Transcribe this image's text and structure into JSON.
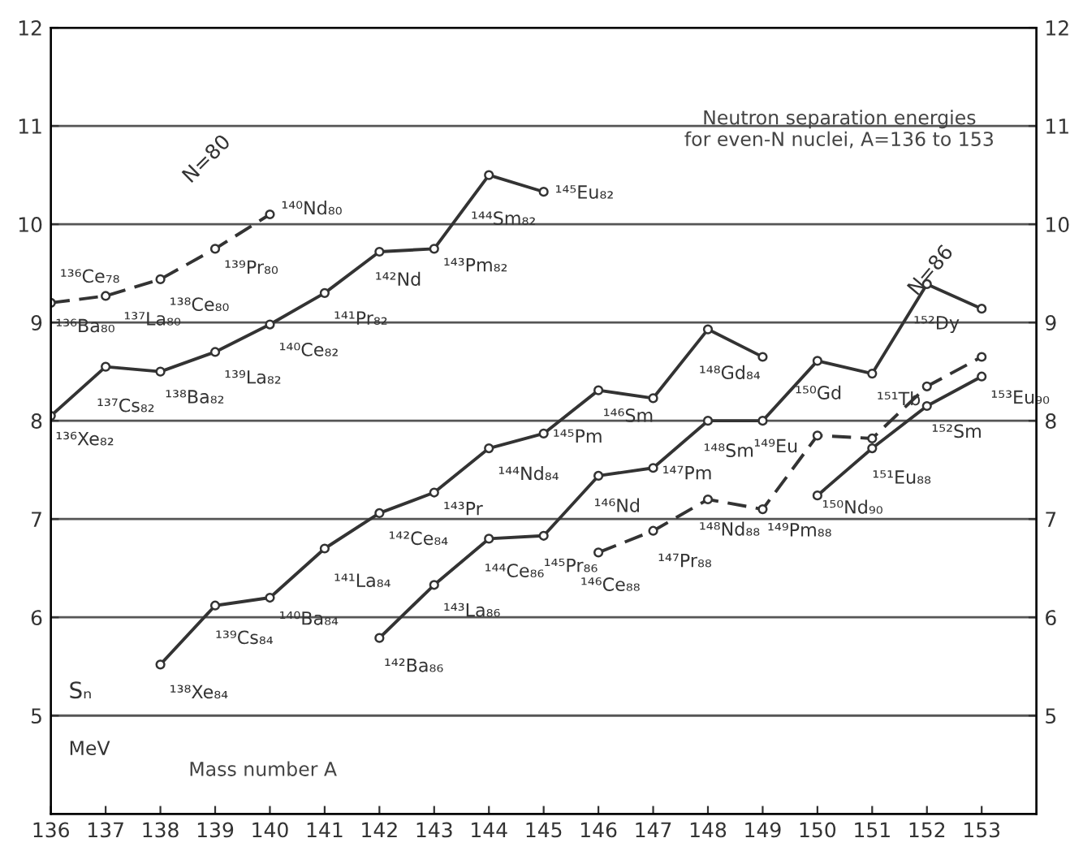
{
  "chart_data": {
    "type": "line",
    "title": "Neutron separation energies\nfor even-N nuclei, A=136 to 153",
    "xlabel": "Mass number A",
    "ylabel": "Sₙ",
    "xlim": [
      136,
      154
    ],
    "xticks": [
      136,
      137,
      138,
      139,
      140,
      141,
      142,
      143,
      144,
      145,
      146,
      147,
      148,
      149,
      150,
      151,
      152,
      153
    ],
    "ylim": [
      4,
      12
    ],
    "yticks": [
      5,
      6,
      7,
      8,
      9,
      10,
      11,
      12
    ],
    "y2lim": [
      4,
      12
    ],
    "y2ticks": [
      5,
      6,
      7,
      8,
      9,
      10,
      11,
      12
    ],
    "grid": "y",
    "marker": "circle",
    "series": [
      {
        "color": "#333333",
        "line_style": "solid",
        "x": [
          136,
          137,
          138,
          139,
          140,
          141,
          142,
          143,
          144,
          145
        ],
        "values": [
          8.05,
          8.55,
          8.5,
          8.7,
          8.98,
          9.3,
          9.72,
          9.75,
          10.5,
          10.33
        ]
      },
      {
        "name": "N=80",
        "color": "#333333",
        "line_style": "dashed",
        "x": [
          136,
          137,
          138,
          139,
          140
        ],
        "values": [
          9.2,
          9.27,
          9.44,
          9.75,
          10.1
        ]
      },
      {
        "color": "#333333",
        "line_style": "solid",
        "x": [
          138,
          139,
          140,
          141,
          142,
          143,
          144,
          145,
          146,
          147,
          148,
          149
        ],
        "values": [
          5.52,
          6.12,
          6.2,
          6.7,
          7.06,
          7.27,
          7.72,
          7.87,
          8.31,
          8.23,
          8.93,
          8.65
        ]
      },
      {
        "name": "N=86",
        "color": "#333333",
        "line_style": "solid",
        "x": [
          142,
          143,
          144,
          145,
          146,
          147,
          148,
          149,
          150,
          151,
          152,
          153
        ],
        "values": [
          5.79,
          6.33,
          6.8,
          6.83,
          7.44,
          7.52,
          8.0,
          8.0,
          8.61,
          8.48,
          9.39,
          9.14
        ]
      },
      {
        "color": "#333333",
        "line_style": "dashed",
        "x": [
          146,
          147,
          148,
          149,
          150,
          151,
          152,
          153
        ],
        "values": [
          6.66,
          6.88,
          7.2,
          7.1,
          7.85,
          7.82,
          8.35,
          8.65
        ]
      },
      {
        "color": "#333333",
        "line_style": "solid",
        "x": [
          150,
          151,
          152,
          153
        ],
        "values": [
          7.24,
          7.72,
          8.15,
          8.45
        ]
      }
    ],
    "annotations": [
      {
        "text": "¹³⁶Xe₈₂",
        "x": 136,
        "y": 8.05
      },
      {
        "text": "¹³⁷Cs₈₂",
        "x": 137,
        "y": 8.55
      },
      {
        "text": "¹³⁸Ba₈₂",
        "x": 138,
        "y": 8.5
      },
      {
        "text": "¹³⁹La₈₂",
        "x": 139,
        "y": 8.7
      },
      {
        "text": "¹⁴⁰Ce₈₂",
        "x": 140,
        "y": 8.98
      },
      {
        "text": "¹⁴¹Pr₈₂",
        "x": 141,
        "y": 9.3
      },
      {
        "text": "¹⁴²Nd",
        "x": 142,
        "y": 9.72
      },
      {
        "text": "¹⁴³Pm₈₂",
        "x": 143,
        "y": 9.75
      },
      {
        "text": "¹⁴⁴Sm₈₂",
        "x": 144,
        "y": 10.5
      },
      {
        "text": "¹⁴⁵Eu₈₂",
        "x": 145,
        "y": 10.33
      },
      {
        "text": "¹³⁶Ba₈₀",
        "x": 136,
        "y": 9.2
      },
      {
        "text": "¹³⁶Ce₇₈",
        "x": 136,
        "y": 9.2
      },
      {
        "text": "¹³⁷La₈₀",
        "x": 137,
        "y": 9.27
      },
      {
        "text": "¹³⁸Ce₈₀",
        "x": 138,
        "y": 9.44
      },
      {
        "text": "¹³⁹Pr₈₀",
        "x": 139,
        "y": 9.75
      },
      {
        "text": "¹⁴⁰Nd₈₀",
        "x": 140,
        "y": 10.1
      },
      {
        "text": "¹³⁸Xe₈₄",
        "x": 138,
        "y": 5.52
      },
      {
        "text": "¹³⁹Cs₈₄",
        "x": 139,
        "y": 6.12
      },
      {
        "text": "¹⁴⁰Ba₈₄",
        "x": 140,
        "y": 6.2
      },
      {
        "text": "¹⁴¹La₈₄",
        "x": 141,
        "y": 6.7
      },
      {
        "text": "¹⁴²Ce₈₄",
        "x": 142,
        "y": 7.06
      },
      {
        "text": "¹⁴³Pr",
        "x": 143,
        "y": 7.27
      },
      {
        "text": "¹⁴⁴Nd₈₄",
        "x": 144,
        "y": 7.72
      },
      {
        "text": "¹⁴⁵Pm",
        "x": 145,
        "y": 7.87
      },
      {
        "text": "¹⁴⁶Sm",
        "x": 146,
        "y": 8.31
      },
      {
        "text": "¹⁴⁸Gd₈₄",
        "x": 148,
        "y": 8.93
      },
      {
        "text": "¹⁴²Ba₈₆",
        "x": 142,
        "y": 5.79
      },
      {
        "text": "¹⁴³La₈₆",
        "x": 143,
        "y": 6.33
      },
      {
        "text": "¹⁴⁴Ce₈₆",
        "x": 144,
        "y": 6.8
      },
      {
        "text": "¹⁴⁵Pr₈₆",
        "x": 145,
        "y": 6.83
      },
      {
        "text": "¹⁴⁶Nd",
        "x": 146,
        "y": 7.44
      },
      {
        "text": "¹⁴⁷Pm",
        "x": 147,
        "y": 7.52
      },
      {
        "text": "¹⁴⁸Sm",
        "x": 148,
        "y": 8.0
      },
      {
        "text": "¹⁴⁹Eu",
        "x": 149,
        "y": 8.0
      },
      {
        "text": "¹⁵⁰Gd",
        "x": 150,
        "y": 8.61
      },
      {
        "text": "¹⁵¹Tb",
        "x": 151,
        "y": 8.48
      },
      {
        "text": "¹⁵²Dy",
        "x": 152,
        "y": 9.39
      },
      {
        "text": "¹⁴⁶Ce₈₈",
        "x": 146,
        "y": 6.66
      },
      {
        "text": "¹⁴⁷Pr₈₈",
        "x": 147,
        "y": 6.88
      },
      {
        "text": "¹⁴⁸Nd₈₈",
        "x": 148,
        "y": 7.2
      },
      {
        "text": "¹⁴⁹Pm₈₈",
        "x": 149,
        "y": 7.1
      },
      {
        "text": "¹⁵¹Eu₈₈",
        "x": 151,
        "y": 7.82
      },
      {
        "text": "¹⁵⁰Nd₉₀",
        "x": 150,
        "y": 7.24
      },
      {
        "text": "¹⁵²Sm",
        "x": 152,
        "y": 8.15
      },
      {
        "text": "¹⁵³Eu₉₀",
        "x": 153,
        "y": 8.45
      },
      "MeV"
    ]
  }
}
